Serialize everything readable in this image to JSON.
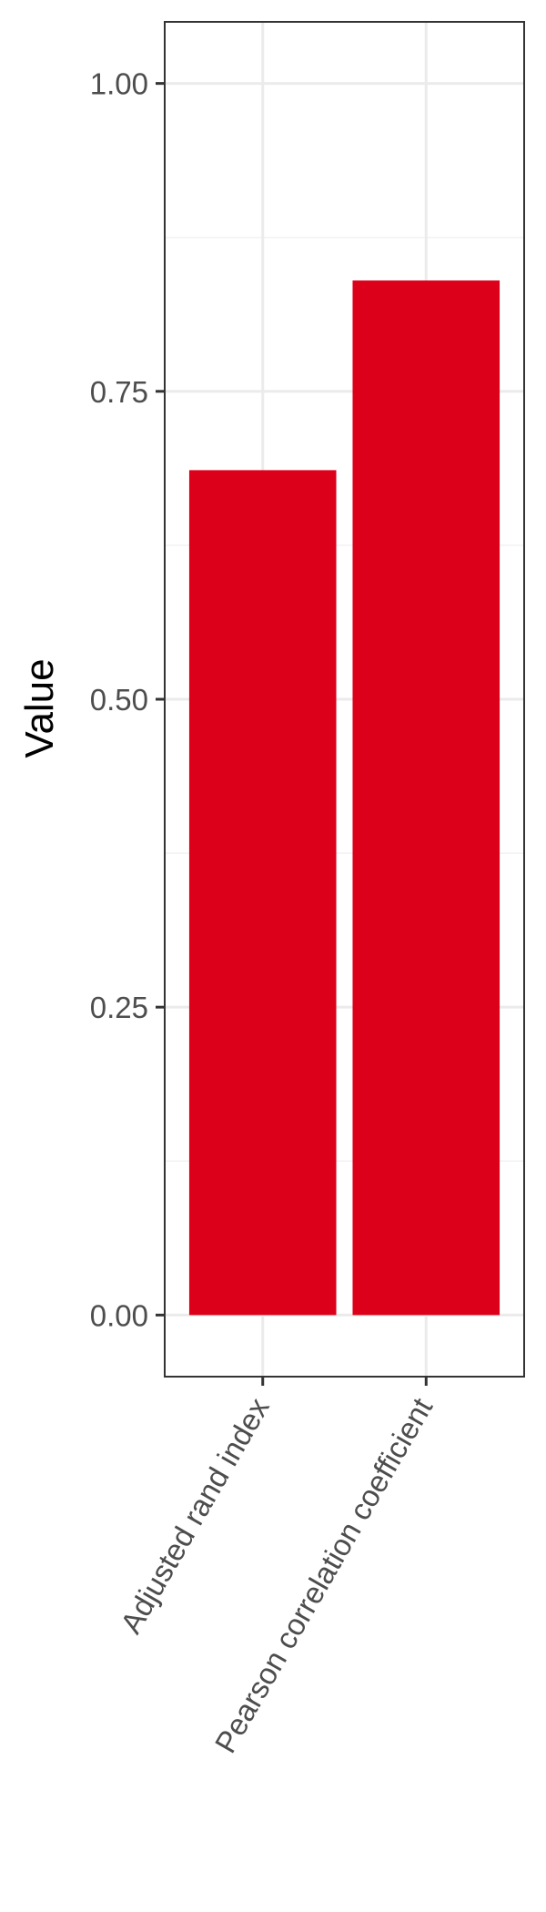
{
  "chart_data": {
    "type": "bar",
    "categories": [
      "Adjusted rand index",
      "Pearson correlation coefficient"
    ],
    "values": [
      0.686,
      0.84
    ],
    "title": "",
    "xlabel": "",
    "ylabel": "Value",
    "ylim": [
      -0.05,
      1.05
    ],
    "yticks": [
      0.0,
      0.25,
      0.5,
      0.75,
      1.0
    ],
    "ytick_labels": [
      "0.00",
      "0.25",
      "0.50",
      "0.75",
      "1.00"
    ],
    "grid": true,
    "legend": "none",
    "colors": {
      "bar": "#dc001a",
      "grid_major": "#ebebeb",
      "grid_minor": "#f2f2f2",
      "panel_border": "#333333",
      "tick_text": "#4d4d4d",
      "axis_title": "#000000"
    }
  }
}
